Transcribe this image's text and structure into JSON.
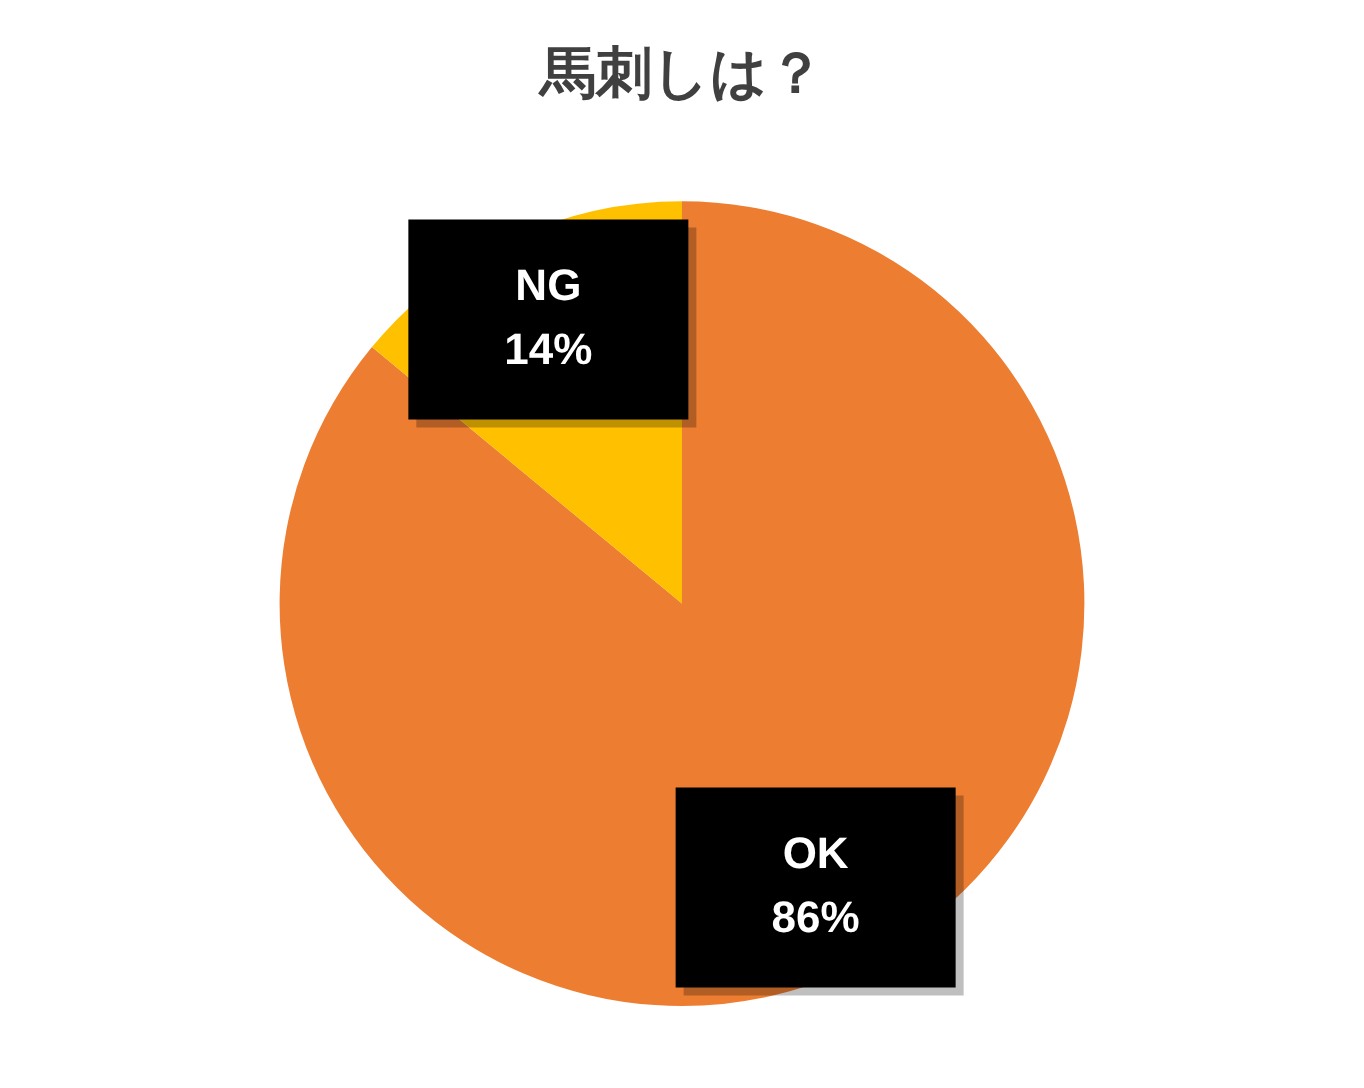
{
  "chart_data": {
    "type": "pie",
    "title": "馬刺しは？",
    "categories": [
      "OK",
      "NG"
    ],
    "values": [
      86,
      14
    ],
    "colors": [
      "#ed7d31",
      "#ffc000"
    ],
    "value_labels": [
      "86%",
      "14%"
    ],
    "legend": false
  }
}
